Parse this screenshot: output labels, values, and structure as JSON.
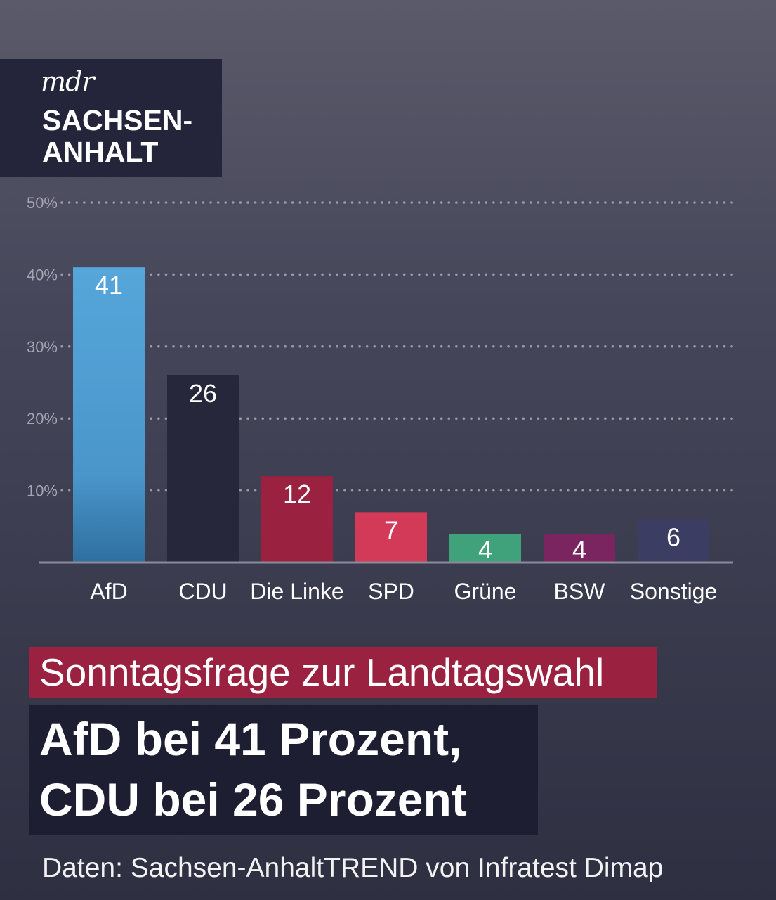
{
  "logo": {
    "mdr": "mdr",
    "line1": "SACHSEN-",
    "line2": "ANHALT"
  },
  "chart_data": {
    "type": "bar",
    "categories": [
      "AfD",
      "CDU",
      "Die Linke",
      "SPD",
      "Grüne",
      "BSW",
      "Sonstige"
    ],
    "values": [
      41,
      26,
      12,
      7,
      4,
      4,
      6
    ],
    "value_labels": [
      "41",
      "26",
      "12",
      "7",
      "4",
      "4",
      "6"
    ],
    "bar_colors": [
      "#4d9bd0",
      "#27273b",
      "#9a2140",
      "#d23a57",
      "#3fa27a",
      "#7a2560",
      "#3b3d63"
    ],
    "yticks": [
      "10%",
      "20%",
      "30%",
      "40%",
      "50%"
    ],
    "ytick_values": [
      10,
      20,
      30,
      40,
      50
    ],
    "ylim": [
      0,
      50
    ],
    "grid": "dotted",
    "title": "",
    "xlabel": "",
    "ylabel": ""
  },
  "subtitle": "Sonntagsfrage zur Landtagswahl",
  "headline": {
    "line1": "AfD bei 41 Prozent,",
    "line2": "CDU bei 26 Prozent"
  },
  "source": "Daten: Sachsen-AnhaltTREND von Infratest Dimap"
}
